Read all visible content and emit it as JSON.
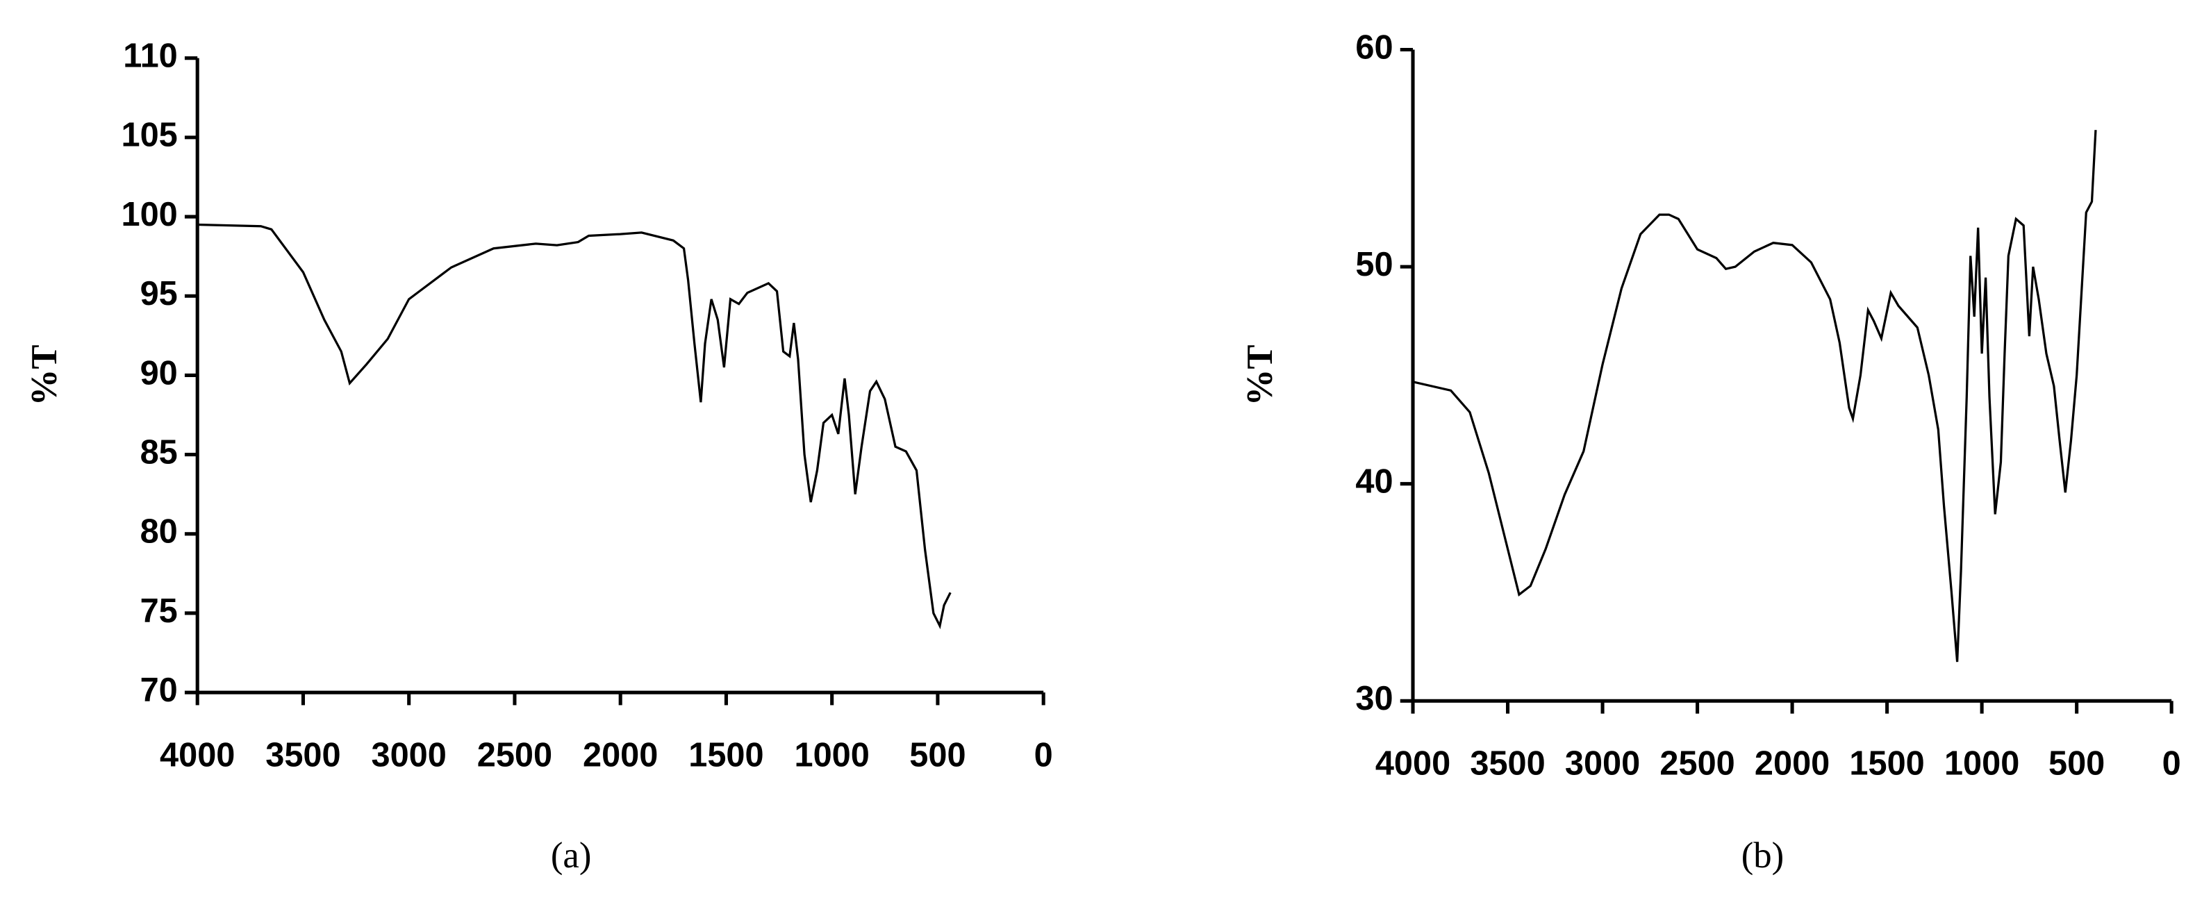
{
  "chart_data": [
    {
      "type": "line",
      "label": "(a)",
      "y_label": "%T",
      "color": "#000000",
      "xlim": [
        4000,
        0
      ],
      "xticks": [
        4000,
        3500,
        3000,
        2500,
        2000,
        1500,
        1000,
        500,
        0
      ],
      "ylim": [
        70,
        110
      ],
      "yticks": [
        70,
        75,
        80,
        85,
        90,
        95,
        100,
        105,
        110
      ],
      "x": [
        4000,
        3700,
        3650,
        3500,
        3400,
        3320,
        3280,
        3200,
        3100,
        3000,
        2950,
        2800,
        2600,
        2400,
        2300,
        2200,
        2150,
        2000,
        1900,
        1750,
        1700,
        1680,
        1650,
        1620,
        1600,
        1570,
        1540,
        1510,
        1480,
        1440,
        1400,
        1300,
        1260,
        1230,
        1200,
        1180,
        1160,
        1130,
        1100,
        1070,
        1040,
        1000,
        970,
        940,
        920,
        890,
        860,
        820,
        790,
        750,
        700,
        650,
        600,
        560,
        520,
        490,
        470,
        440
      ],
      "values": [
        99.5,
        99.4,
        99.2,
        96.5,
        93.5,
        91.5,
        89.5,
        90.7,
        92.3,
        94.8,
        95.3,
        96.8,
        98,
        98.3,
        98.2,
        98.4,
        98.8,
        98.9,
        99,
        98.5,
        98,
        96,
        92,
        88.3,
        92,
        94.8,
        93.5,
        90.5,
        94.8,
        94.5,
        95.2,
        95.8,
        95.3,
        91.5,
        91.2,
        93.3,
        91,
        85,
        82,
        84,
        87,
        87.5,
        86.3,
        89.8,
        87.5,
        82.5,
        85.5,
        89,
        89.6,
        88.5,
        85.5,
        85.2,
        84,
        79,
        75,
        74.2,
        75.5,
        76.3
      ]
    },
    {
      "type": "line",
      "label": "(b)",
      "y_label": "%T",
      "color": "#000000",
      "xlim": [
        4000,
        0
      ],
      "xticks": [
        4000,
        3500,
        3000,
        2500,
        2000,
        1500,
        1000,
        500,
        0
      ],
      "ylim": [
        30,
        60
      ],
      "yticks": [
        30,
        40,
        50,
        60
      ],
      "x": [
        4000,
        3800,
        3700,
        3600,
        3500,
        3440,
        3380,
        3300,
        3200,
        3100,
        3000,
        2900,
        2800,
        2700,
        2650,
        2600,
        2500,
        2400,
        2350,
        2300,
        2200,
        2100,
        2000,
        1900,
        1800,
        1750,
        1700,
        1680,
        1640,
        1600,
        1570,
        1530,
        1480,
        1440,
        1400,
        1340,
        1280,
        1230,
        1200,
        1160,
        1130,
        1110,
        1080,
        1060,
        1040,
        1020,
        1000,
        980,
        960,
        930,
        900,
        880,
        860,
        820,
        780,
        750,
        730,
        700,
        660,
        620,
        590,
        560,
        530,
        500,
        480,
        450,
        420,
        400
      ],
      "values": [
        44.7,
        44.3,
        43.3,
        40.5,
        37,
        34.9,
        35.3,
        37,
        39.5,
        41.5,
        45.5,
        49,
        51.5,
        52.4,
        52.4,
        52.2,
        50.8,
        50.4,
        49.9,
        50,
        50.7,
        51.1,
        51,
        50.2,
        48.5,
        46.5,
        43.5,
        43,
        45,
        48,
        47.5,
        46.7,
        48.8,
        48.2,
        47.8,
        47.2,
        45,
        42.5,
        39,
        35,
        31.8,
        36,
        44,
        50.5,
        47.7,
        51.8,
        46,
        49.5,
        44,
        38.6,
        41,
        46,
        50.5,
        52.2,
        51.9,
        46.8,
        50,
        48.5,
        46,
        44.5,
        42,
        39.6,
        42,
        45,
        48,
        52.5,
        53,
        56.3
      ]
    }
  ]
}
